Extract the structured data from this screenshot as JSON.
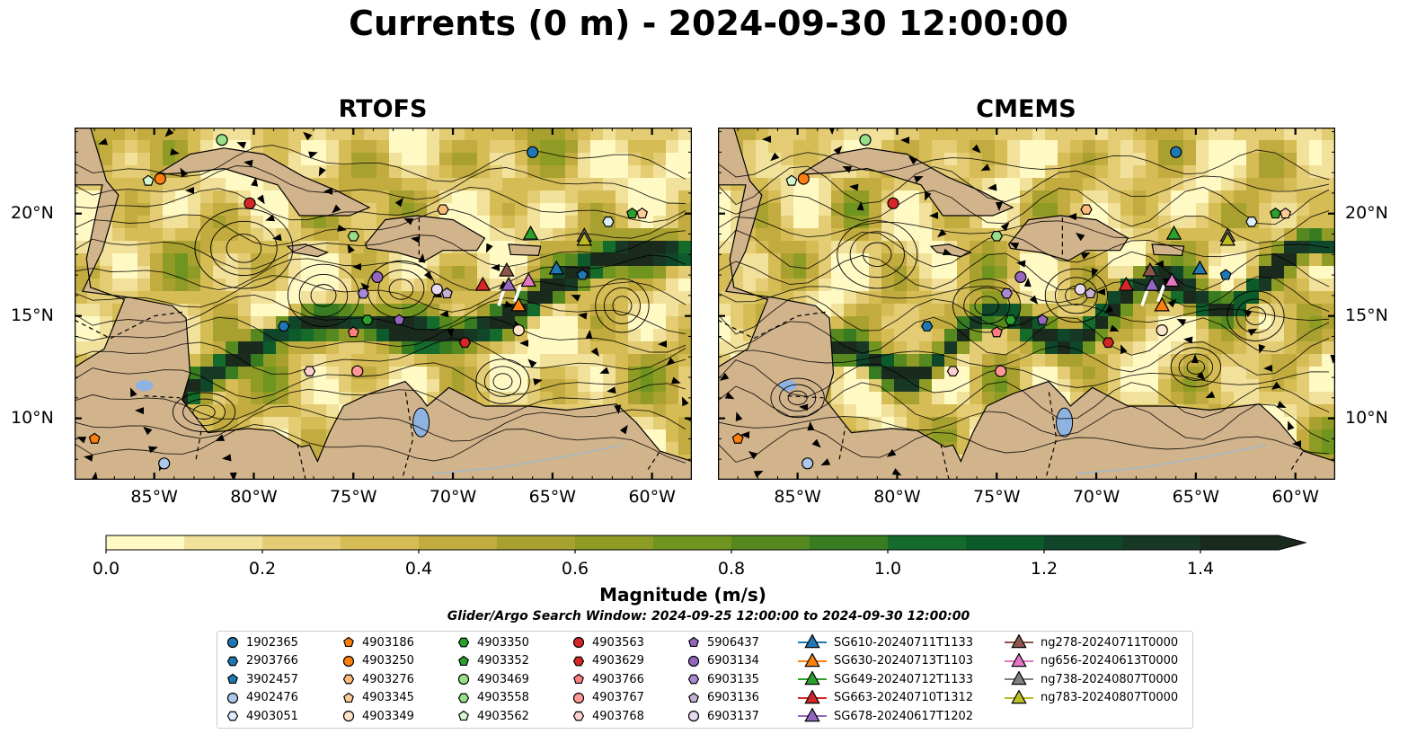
{
  "title": "Currents (0 m) - 2024-09-30 12:00:00",
  "panels": [
    {
      "title": "RTOFS",
      "field_variant": 1
    },
    {
      "title": "CMEMS",
      "field_variant": 2
    }
  ],
  "map_extent": {
    "lon": [
      -89,
      -58
    ],
    "lat": [
      7,
      24.2
    ]
  },
  "x_ticks": [
    {
      "value": -85,
      "label": "85°W"
    },
    {
      "value": -80,
      "label": "80°W"
    },
    {
      "value": -75,
      "label": "75°W"
    },
    {
      "value": -70,
      "label": "70°W"
    },
    {
      "value": -65,
      "label": "65°W"
    },
    {
      "value": -60,
      "label": "60°W"
    }
  ],
  "y_ticks": [
    {
      "value": 20,
      "label": "20°N"
    },
    {
      "value": 15,
      "label": "15°N"
    },
    {
      "value": 10,
      "label": "10°N"
    }
  ],
  "colorbar": {
    "label": "Magnitude (m/s)",
    "range": [
      0,
      1.5
    ],
    "extend": "max",
    "ticks": [
      {
        "value": 0.0,
        "label": "0.0"
      },
      {
        "value": 0.2,
        "label": "0.2"
      },
      {
        "value": 0.4,
        "label": "0.4"
      },
      {
        "value": 0.6,
        "label": "0.6"
      },
      {
        "value": 0.8,
        "label": "0.8"
      },
      {
        "value": 1.0,
        "label": "1.0"
      },
      {
        "value": 1.2,
        "label": "1.2"
      },
      {
        "value": 1.4,
        "label": "1.4"
      }
    ],
    "colors": [
      "#fff9c4",
      "#f2e19a",
      "#e3cc73",
      "#d5bc55",
      "#c2ac3f",
      "#a9a12f",
      "#8e9b24",
      "#6f941f",
      "#55891f",
      "#387c22",
      "#146b2c",
      "#0d5a2a",
      "#10462a",
      "#183826",
      "#1a2a1c"
    ]
  },
  "colors": {
    "land": "#d2b48c",
    "lakes": "#8fb3e0",
    "rivers": "#9fb8cc"
  },
  "search_window": "Glider/Argo Search Window: 2024-09-25 12:00:00 to 2024-09-30 12:00:00",
  "legend": {
    "columns": [
      [
        {
          "label": "1902365",
          "marker": "circle",
          "color": "#1f77b4"
        },
        {
          "label": "2903766",
          "marker": "hexagon",
          "color": "#1f77b4"
        },
        {
          "label": "3902457",
          "marker": "pentagon",
          "color": "#1f77b4"
        },
        {
          "label": "4902476",
          "marker": "circle",
          "color": "#aec7e8"
        },
        {
          "label": "4903051",
          "marker": "hexagon",
          "color": "#ddeeff"
        }
      ],
      [
        {
          "label": "4903186",
          "marker": "pentagon",
          "color": "#ff7f0e"
        },
        {
          "label": "4903250",
          "marker": "circle",
          "color": "#ff7f0e"
        },
        {
          "label": "4903276",
          "marker": "hexagon",
          "color": "#ffbb78"
        },
        {
          "label": "4903345",
          "marker": "pentagon",
          "color": "#ffcc99"
        },
        {
          "label": "4903349",
          "marker": "circle",
          "color": "#ffe4c8"
        }
      ],
      [
        {
          "label": "4903350",
          "marker": "hexagon",
          "color": "#2ca02c"
        },
        {
          "label": "4903352",
          "marker": "pentagon",
          "color": "#2ca02c"
        },
        {
          "label": "4903469",
          "marker": "circle",
          "color": "#98df8a"
        },
        {
          "label": "4903558",
          "marker": "hexagon",
          "color": "#98df8a"
        },
        {
          "label": "4903562",
          "marker": "pentagon",
          "color": "#d4f7d0"
        }
      ],
      [
        {
          "label": "4903563",
          "marker": "circle",
          "color": "#d62728"
        },
        {
          "label": "4903629",
          "marker": "hexagon",
          "color": "#d62728"
        },
        {
          "label": "4903766",
          "marker": "pentagon",
          "color": "#ff7f7f"
        },
        {
          "label": "4903767",
          "marker": "circle",
          "color": "#ff9896"
        },
        {
          "label": "4903768",
          "marker": "hexagon",
          "color": "#ffd0cf"
        }
      ],
      [
        {
          "label": "5906437",
          "marker": "pentagon",
          "color": "#9467bd"
        },
        {
          "label": "6903134",
          "marker": "circle",
          "color": "#9467bd"
        },
        {
          "label": "6903135",
          "marker": "hexagon",
          "color": "#a988d6"
        },
        {
          "label": "6903136",
          "marker": "pentagon",
          "color": "#c5b0d5"
        },
        {
          "label": "6903137",
          "marker": "circle",
          "color": "#e6d8f0"
        }
      ],
      [
        {
          "label": "SG610-20240711T1133",
          "marker": "triangle",
          "color": "#1f77b4"
        },
        {
          "label": "SG630-20240713T1103",
          "marker": "triangle",
          "color": "#ff7f0e"
        },
        {
          "label": "SG649-20240712T1133",
          "marker": "triangle",
          "color": "#2ca02c"
        },
        {
          "label": "SG663-20240710T1312",
          "marker": "triangle",
          "color": "#d62728"
        },
        {
          "label": "SG678-20240617T1202",
          "marker": "triangle",
          "color": "#9467bd"
        }
      ],
      [
        {
          "label": "ng278-20240711T0000",
          "marker": "triangle",
          "color": "#8c564b"
        },
        {
          "label": "ng656-20240613T0000",
          "marker": "triangle",
          "color": "#e377c2"
        },
        {
          "label": "ng738-20240807T0000",
          "marker": "triangle",
          "color": "#7f7f7f"
        },
        {
          "label": "ng783-20240807T0000",
          "marker": "triangle",
          "color": "#bcbd22"
        }
      ]
    ]
  },
  "chart_data": {
    "type": "scatter",
    "x_unit": "longitude (°)",
    "y_unit": "latitude (°N)",
    "points": [
      {
        "id": "1902365",
        "x": -66.0,
        "y": 23.0
      },
      {
        "id": "2903766",
        "x": -78.5,
        "y": 14.5
      },
      {
        "id": "3902457",
        "x": -63.5,
        "y": 17.0
      },
      {
        "id": "4902476",
        "x": -84.5,
        "y": 7.8
      },
      {
        "id": "4903051",
        "x": -62.2,
        "y": 19.6
      },
      {
        "id": "4903186",
        "x": -88.0,
        "y": 9.0
      },
      {
        "id": "4903250",
        "x": -84.7,
        "y": 21.7
      },
      {
        "id": "4903276",
        "x": -70.5,
        "y": 20.2
      },
      {
        "id": "4903345",
        "x": -60.5,
        "y": 20.0
      },
      {
        "id": "4903349",
        "x": -66.7,
        "y": 14.3
      },
      {
        "id": "4903350",
        "x": -74.3,
        "y": 14.8
      },
      {
        "id": "4903352",
        "x": -61.0,
        "y": 20.0
      },
      {
        "id": "4903469",
        "x": -81.6,
        "y": 23.6
      },
      {
        "id": "4903558",
        "x": -75.0,
        "y": 18.9
      },
      {
        "id": "4903562",
        "x": -85.3,
        "y": 21.6
      },
      {
        "id": "4903563",
        "x": -80.2,
        "y": 20.5
      },
      {
        "id": "4903629",
        "x": -69.4,
        "y": 13.7
      },
      {
        "id": "4903766",
        "x": -75.0,
        "y": 14.2
      },
      {
        "id": "4903767",
        "x": -74.8,
        "y": 12.3
      },
      {
        "id": "4903768",
        "x": -77.2,
        "y": 12.3
      },
      {
        "id": "5906437",
        "x": -72.7,
        "y": 14.8
      },
      {
        "id": "6903134",
        "x": -73.8,
        "y": 16.9
      },
      {
        "id": "6903135",
        "x": -74.5,
        "y": 16.1
      },
      {
        "id": "6903136",
        "x": -70.3,
        "y": 16.1
      },
      {
        "id": "6903137",
        "x": -70.8,
        "y": 16.3
      },
      {
        "id": "SG610-20240711T1133",
        "x": -64.8,
        "y": 17.3
      },
      {
        "id": "SG630-20240713T1103",
        "x": -66.7,
        "y": 15.5
      },
      {
        "id": "SG649-20240712T1133",
        "x": -66.1,
        "y": 19.0
      },
      {
        "id": "SG663-20240710T1312",
        "x": -68.5,
        "y": 16.5
      },
      {
        "id": "SG678-20240617T1202",
        "x": -67.2,
        "y": 16.5
      },
      {
        "id": "ng278-20240711T0000",
        "x": -67.3,
        "y": 17.2
      },
      {
        "id": "ng656-20240613T0000",
        "x": -66.2,
        "y": 16.7
      },
      {
        "id": "ng738-20240807T0000",
        "x": -63.4,
        "y": 18.9
      },
      {
        "id": "ng783-20240807T0000",
        "x": -63.4,
        "y": 18.7
      }
    ]
  }
}
